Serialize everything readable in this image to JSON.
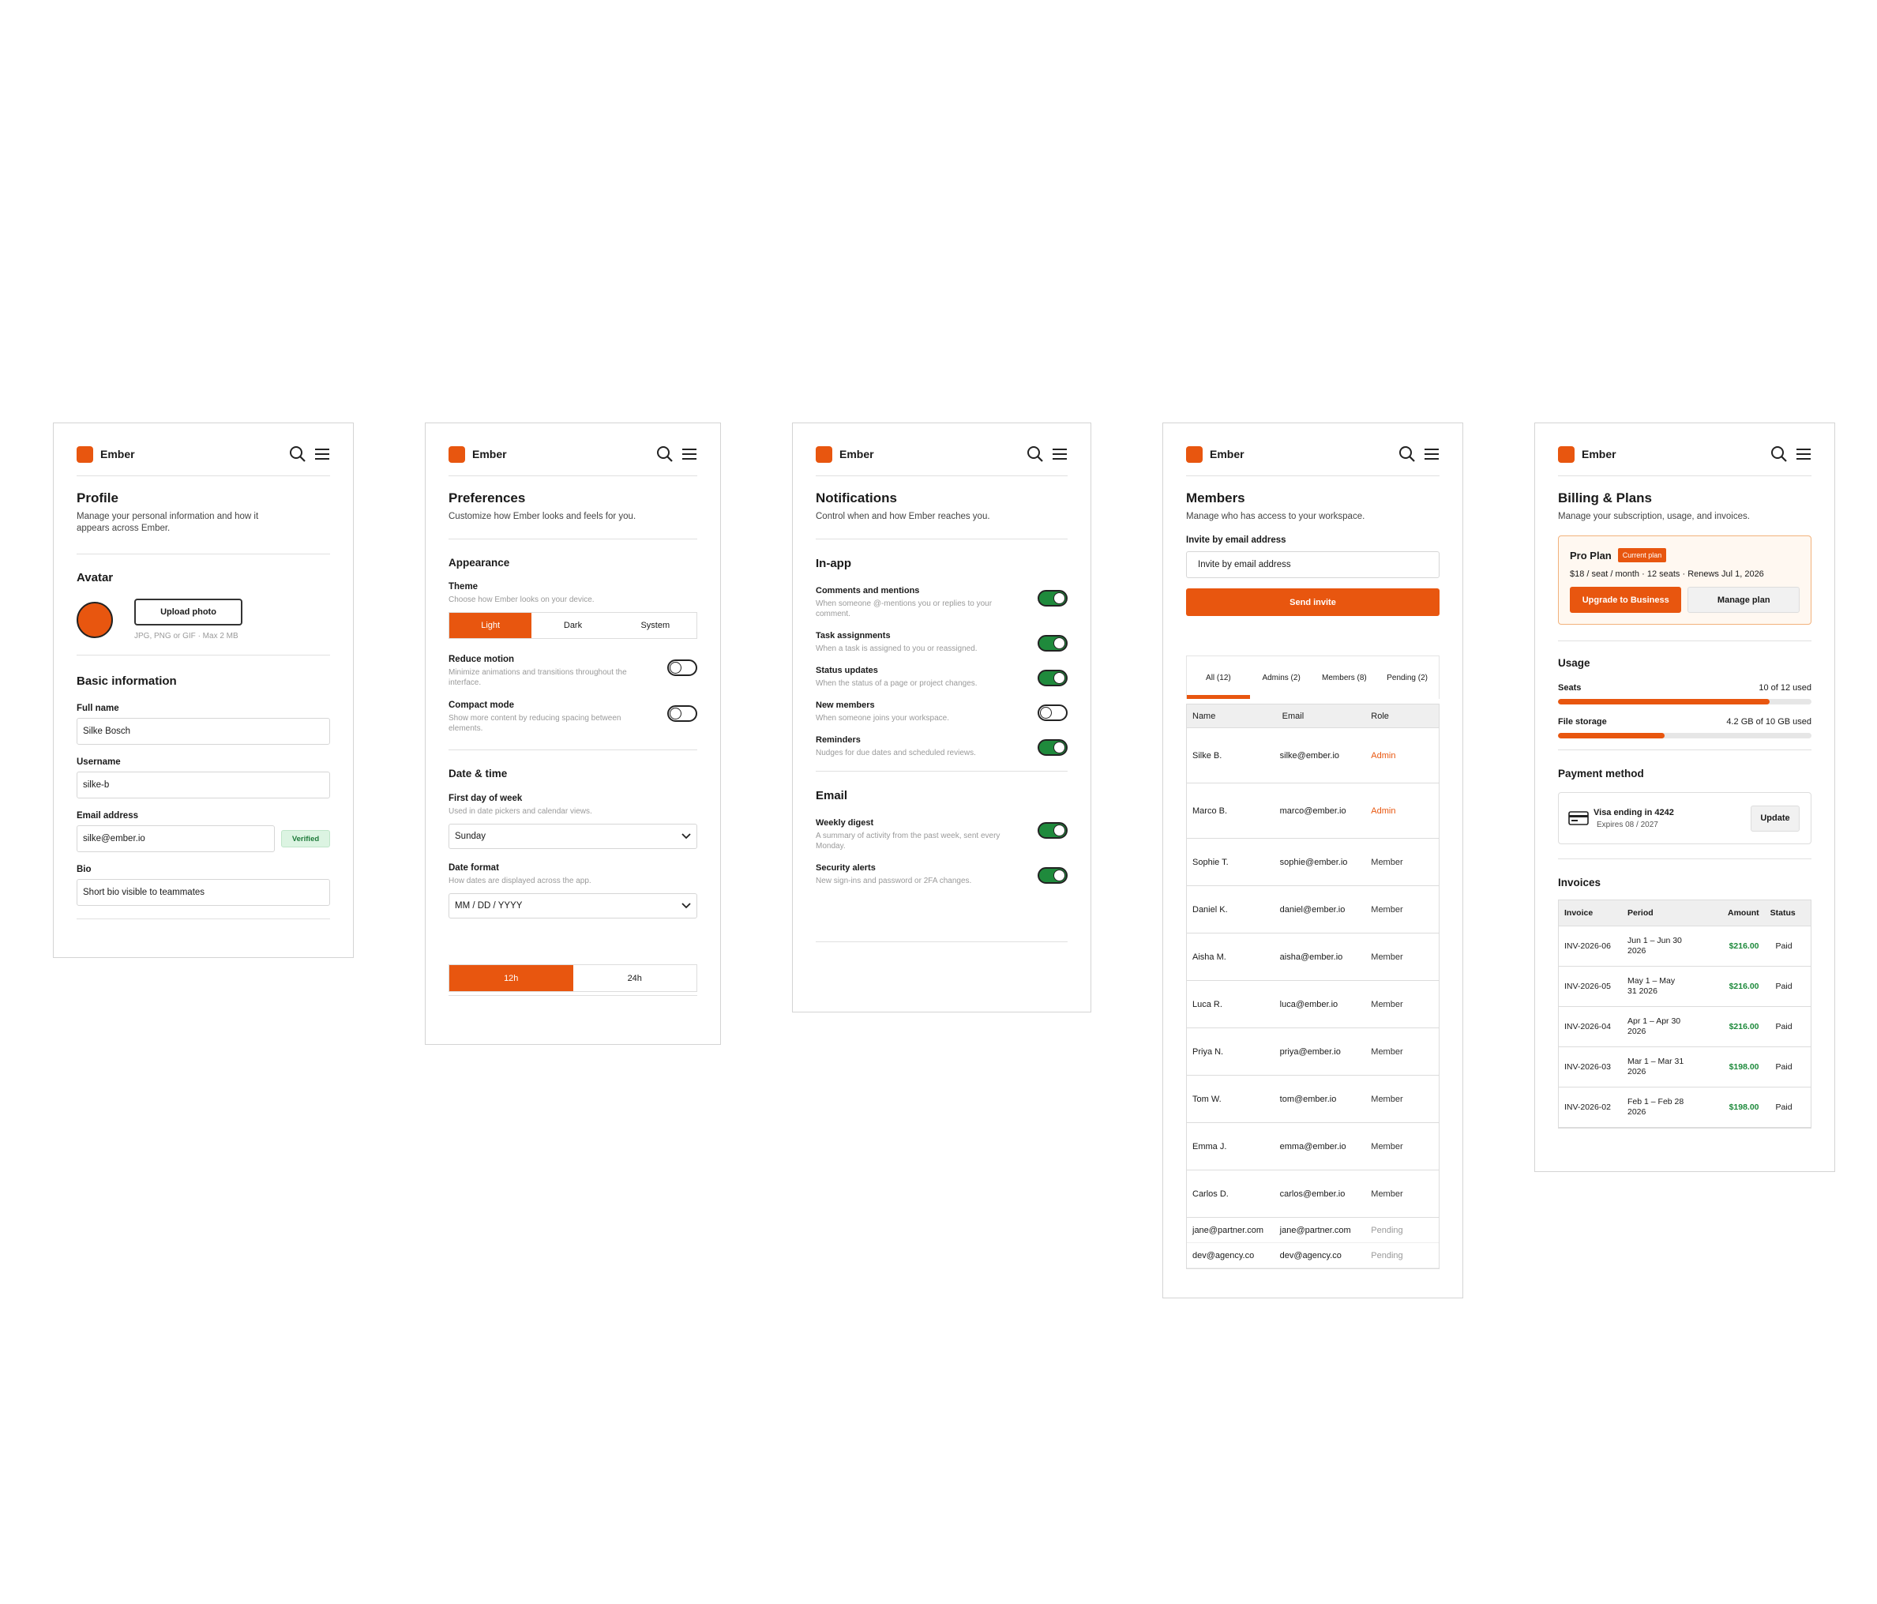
{
  "brand": "Ember",
  "profile": {
    "title": "Profile",
    "description": "Manage your personal information and how it appears across Ember.",
    "avatar": {
      "heading": "Avatar",
      "button": "Upload photo",
      "hint": "JPG, PNG or GIF · Max 2 MB"
    },
    "basic": {
      "heading": "Basic information",
      "fields": [
        {
          "label": "Full name",
          "value": "Silke Bosch"
        },
        {
          "label": "Username",
          "value": "silke-b"
        },
        {
          "label": "Email address",
          "value": "silke@ember.io",
          "badge": "Verified"
        },
        {
          "label": "Bio",
          "value": "Short bio visible to teammates"
        }
      ]
    }
  },
  "preferences": {
    "title": "Preferences",
    "description": "Customize how Ember looks and feels for you.",
    "appearance": {
      "heading": "Appearance",
      "theme": {
        "label": "Theme",
        "hint": "Choose how Ember looks on your device.",
        "options": [
          "Light",
          "Dark",
          "System"
        ],
        "selected": 0
      },
      "toggles": [
        {
          "label": "Reduce motion",
          "hint": "Minimize animations and transitions throughout the interface.",
          "on": false
        },
        {
          "label": "Compact mode",
          "hint": "Show more content by reducing spacing between elements.",
          "on": false
        }
      ]
    },
    "datetime": {
      "heading": "Date & time",
      "selects": [
        {
          "label": "First day of week",
          "hint": "Used in date pickers and calendar views.",
          "value": "Sunday"
        },
        {
          "label": "Date format",
          "hint": "How dates are displayed across the app.",
          "value": "MM / DD / YYYY"
        }
      ],
      "clock": {
        "options": [
          "12h",
          "24h"
        ],
        "selected": 0
      }
    }
  },
  "notifications": {
    "title": "Notifications",
    "description": "Control when and how Ember reaches you.",
    "sections": [
      {
        "heading": "In-app",
        "items": [
          {
            "label": "Comments and mentions",
            "hint": "When someone @-mentions you or replies to your comment.",
            "on": true
          },
          {
            "label": "Task assignments",
            "hint": "When a task is assigned to you or reassigned.",
            "on": true
          },
          {
            "label": "Status updates",
            "hint": "When the status of a page or project changes.",
            "on": true
          },
          {
            "label": "New members",
            "hint": "When someone joins your workspace.",
            "on": false
          },
          {
            "label": "Reminders",
            "hint": "Nudges for due dates and scheduled reviews.",
            "on": true
          }
        ]
      },
      {
        "heading": "Email",
        "items": [
          {
            "label": "Weekly digest",
            "hint": "A summary of activity from the past week, sent every Monday.",
            "on": true
          },
          {
            "label": "Security alerts",
            "hint": "New sign-ins and password or 2FA changes.",
            "on": true
          }
        ]
      }
    ]
  },
  "members": {
    "title": "Members",
    "description": "Manage who has access to your workspace.",
    "invite": {
      "label": "Invite by email address",
      "placeholder": "Invite by email address",
      "button": "Send invite"
    },
    "tabs": [
      "All (12)",
      "Admins (2)",
      "Members (8)",
      "Pending (2)"
    ],
    "selected_tab": 0,
    "columns": [
      "Name",
      "Email",
      "Role"
    ],
    "rows": [
      {
        "name": "Silke B.",
        "email": "silke@ember.io",
        "role": "Admin",
        "role_color": "#e8560f"
      },
      {
        "name": "Marco B.",
        "email": "marco@ember.io",
        "role": "Admin",
        "role_color": "#e8560f"
      },
      {
        "name": "Sophie T.",
        "email": "sophie@ember.io",
        "role": "Member",
        "role_color": "#333333"
      },
      {
        "name": "Daniel K.",
        "email": "daniel@ember.io",
        "role": "Member",
        "role_color": "#333333"
      },
      {
        "name": "Aisha M.",
        "email": "aisha@ember.io",
        "role": "Member",
        "role_color": "#333333"
      },
      {
        "name": "Luca R.",
        "email": "luca@ember.io",
        "role": "Member",
        "role_color": "#333333"
      },
      {
        "name": "Priya N.",
        "email": "priya@ember.io",
        "role": "Member",
        "role_color": "#333333"
      },
      {
        "name": "Tom W.",
        "email": "tom@ember.io",
        "role": "Member",
        "role_color": "#333333"
      },
      {
        "name": "Emma J.",
        "email": "emma@ember.io",
        "role": "Member",
        "role_color": "#333333"
      },
      {
        "name": "Carlos D.",
        "email": "carlos@ember.io",
        "role": "Member",
        "role_color": "#333333"
      },
      {
        "name": "jane@partner.com",
        "email": "jane@partner.com",
        "role": "Pending",
        "role_color": "#999999"
      },
      {
        "name": "dev@agency.co",
        "email": "dev@agency.co",
        "role": "Pending",
        "role_color": "#999999"
      }
    ]
  },
  "billing": {
    "title": "Billing & Plans",
    "description": "Manage your subscription, usage, and invoices.",
    "plan": {
      "name": "Pro Plan",
      "badge": "Current plan",
      "details": "$18 / seat / month · 12 seats · Renews Jul 1, 2026",
      "primary": "Upgrade to Business",
      "secondary": "Manage plan"
    },
    "usage": {
      "heading": "Usage",
      "meters": [
        {
          "label": "Seats",
          "value_label": "10 of 12 used",
          "used": 10,
          "limit": 12
        },
        {
          "label": "File storage",
          "value_label": "4.2 GB of 10 GB used",
          "used": 4.2,
          "limit": 10
        }
      ]
    },
    "payment": {
      "heading": "Payment method",
      "card": "Visa ending in 4242",
      "expires": "Expires 08 / 2027",
      "button": "Update"
    },
    "invoices": {
      "heading": "Invoices",
      "columns": [
        "Invoice",
        "Period",
        "Amount",
        "Status"
      ],
      "rows": [
        {
          "id": "INV-2026-06",
          "period": "Jun 1 – Jun 30 2026",
          "amount": "$216.00",
          "status": "Paid"
        },
        {
          "id": "INV-2026-05",
          "period": "May 1 – May 31 2026",
          "amount": "$216.00",
          "status": "Paid"
        },
        {
          "id": "INV-2026-04",
          "period": "Apr 1 – Apr 30 2026",
          "amount": "$216.00",
          "status": "Paid"
        },
        {
          "id": "INV-2026-03",
          "period": "Mar 1 – Mar 31 2026",
          "amount": "$198.00",
          "status": "Paid"
        },
        {
          "id": "INV-2026-02",
          "period": "Feb 1 – Feb 28 2026",
          "amount": "$198.00",
          "status": "Paid"
        }
      ]
    }
  }
}
